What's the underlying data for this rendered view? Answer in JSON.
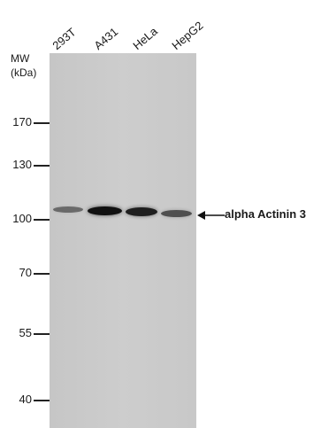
{
  "lanes": [
    "293T",
    "A431",
    "HeLa",
    "HepG2"
  ],
  "mw_header": {
    "line1": "MW",
    "line2": "(kDa)"
  },
  "mw_markers": [
    "170",
    "130",
    "100",
    "70",
    "55",
    "40"
  ],
  "band_label": "alpha Actinin 3",
  "band_intensity": [
    0.35,
    1.0,
    0.9,
    0.55
  ],
  "colors": {
    "membrane": "#c8c8c8",
    "band": "#111111",
    "text": "#1a1a1a"
  }
}
